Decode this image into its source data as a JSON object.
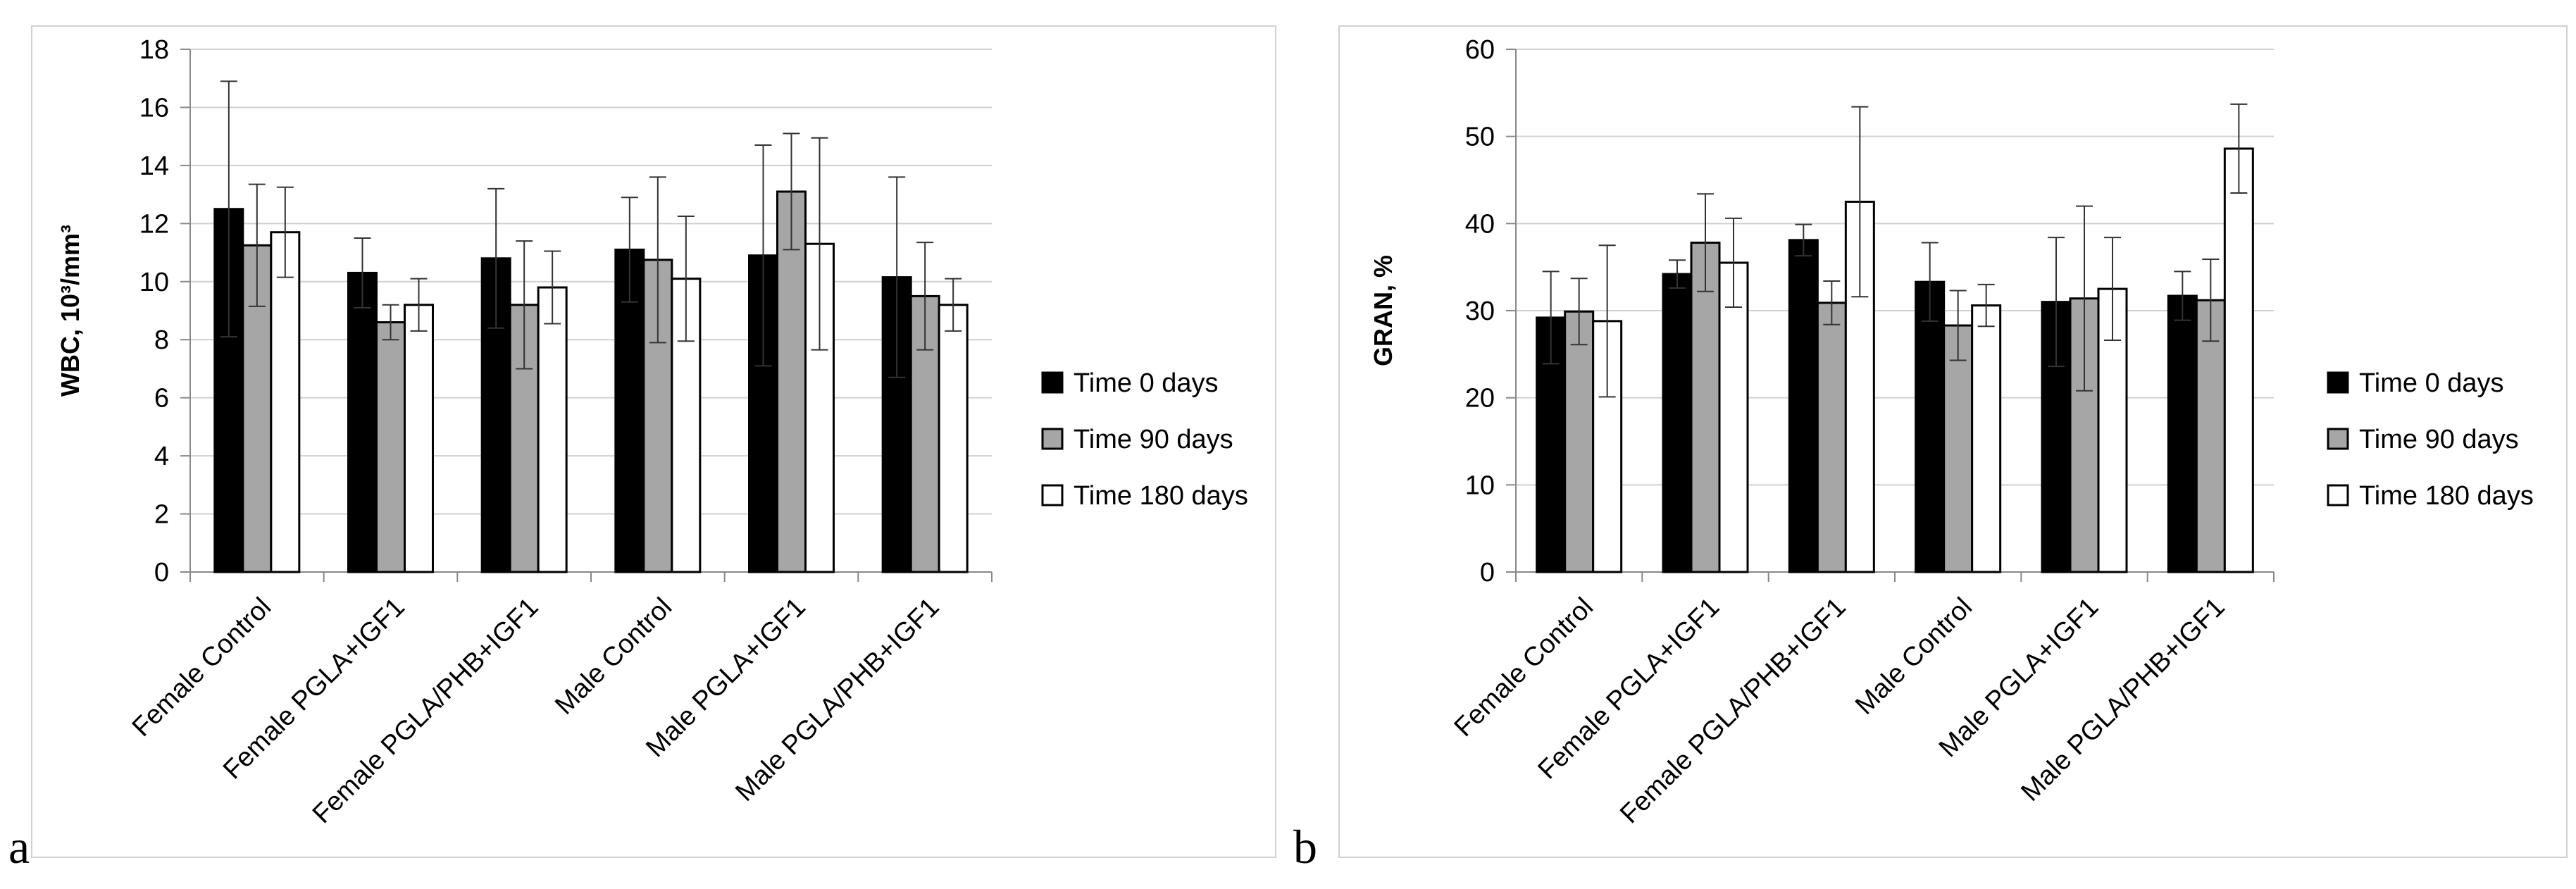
{
  "panel_labels": [
    "a",
    "b"
  ],
  "chart_data": [
    {
      "type": "bar",
      "title": "",
      "xlabel": "",
      "ylabel": "WBC, 10³/mm³",
      "ylim": [
        0,
        18
      ],
      "ytick_step": 2,
      "grid": true,
      "legend": "right",
      "categories": [
        "Female Control",
        "Female PGLA+IGF1",
        "Female PGLA/PHB+IGF1",
        "Male Control",
        "Male PGLA+IGF1",
        "Male PGLA/PHB+IGF1"
      ],
      "series": [
        {
          "name": "Time 0 days",
          "color": "#000000",
          "values": [
            12.5,
            10.3,
            10.8,
            11.1,
            10.9,
            10.15
          ],
          "errors": [
            4.4,
            1.2,
            2.4,
            1.8,
            3.8,
            3.45
          ]
        },
        {
          "name": "Time 90 days",
          "color": "#a6a6a6",
          "values": [
            11.25,
            8.6,
            9.2,
            10.75,
            13.1,
            9.5
          ],
          "errors": [
            2.1,
            0.6,
            2.2,
            2.85,
            2.0,
            1.85
          ]
        },
        {
          "name": "Time 180 days",
          "color": "#ffffff",
          "values": [
            11.7,
            9.2,
            9.8,
            10.1,
            11.3,
            9.2
          ],
          "errors": [
            1.55,
            0.9,
            1.25,
            2.15,
            3.65,
            0.9
          ]
        }
      ]
    },
    {
      "type": "bar",
      "title": "",
      "xlabel": "",
      "ylabel": "GRAN, %",
      "ylim": [
        0,
        60
      ],
      "ytick_step": 10,
      "grid": true,
      "legend": "right",
      "categories": [
        "Female Control",
        "Female PGLA+IGF1",
        "Female PGLA/PHB+IGF1",
        "Male Control",
        "Male PGLA+IGF1",
        "Male PGLA/PHB+IGF1"
      ],
      "series": [
        {
          "name": "Time 0 days",
          "color": "#000000",
          "values": [
            29.2,
            34.2,
            38.1,
            33.3,
            31.0,
            31.7
          ],
          "errors": [
            5.3,
            1.6,
            1.8,
            4.5,
            7.4,
            2.8
          ]
        },
        {
          "name": "Time 90 days",
          "color": "#a6a6a6",
          "values": [
            29.9,
            37.8,
            30.9,
            28.3,
            31.4,
            31.2
          ],
          "errors": [
            3.8,
            5.6,
            2.5,
            4.0,
            10.6,
            4.7
          ]
        },
        {
          "name": "Time 180 days",
          "color": "#ffffff",
          "values": [
            28.8,
            35.5,
            42.5,
            30.6,
            32.5,
            48.6
          ],
          "errors": [
            8.7,
            5.1,
            10.9,
            2.4,
            5.9,
            5.1
          ]
        }
      ]
    }
  ]
}
